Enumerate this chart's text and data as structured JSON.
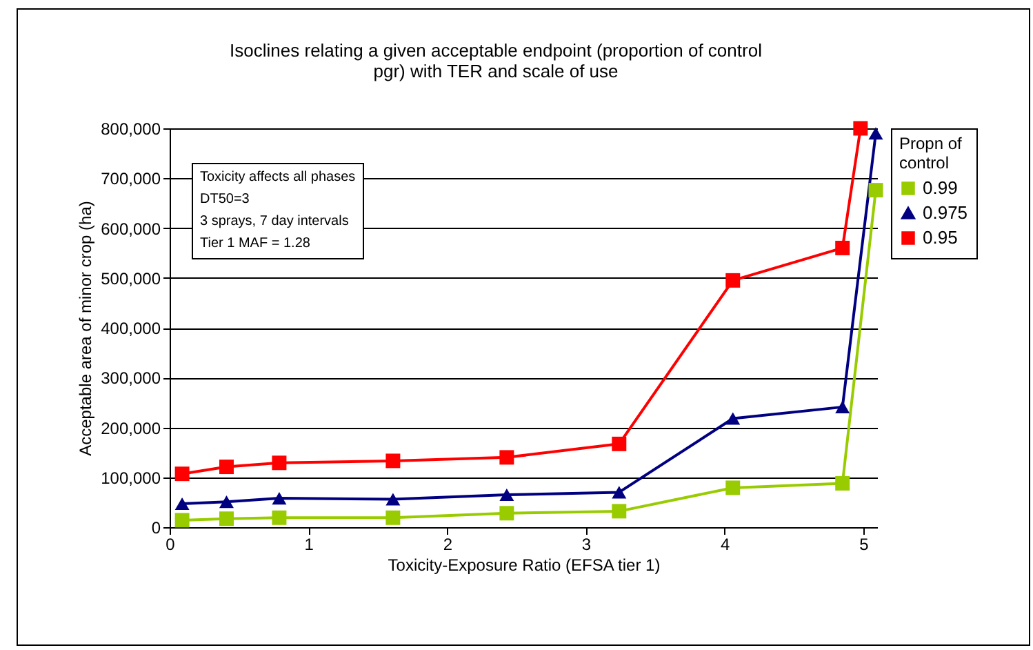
{
  "chart_data": {
    "type": "line",
    "title": "Isoclines relating a given acceptable endpoint (proportion of control pgr) with TER and scale of use",
    "xlabel": "Toxicity-Exposure Ratio (EFSA tier 1)",
    "ylabel": "Acceptable area of minor crop (ha)",
    "legend_title": "Propn of control",
    "annotations": [
      "Toxicity affects all phases",
      "DT50=3",
      "3 sprays, 7 day intervals",
      "Tier 1 MAF = 1.28"
    ],
    "series": [
      {
        "name": "0.99",
        "color": "#99cc00",
        "marker": "square",
        "x": [
          0.09,
          0.41,
          0.79,
          1.61,
          2.43,
          3.24,
          4.06,
          4.85,
          5.09
        ],
        "values": [
          14000,
          17000,
          19000,
          19000,
          28000,
          32000,
          79000,
          88000,
          676000
        ]
      },
      {
        "name": "0.975",
        "color": "#000080",
        "marker": "triangle",
        "x": [
          0.09,
          0.41,
          0.79,
          1.61,
          2.43,
          3.24,
          4.06,
          4.85,
          5.09
        ],
        "values": [
          47000,
          51000,
          58000,
          56000,
          65000,
          70000,
          218000,
          241000,
          790000
        ]
      },
      {
        "name": "0.95",
        "color": "#ff0000",
        "marker": "square",
        "x": [
          0.09,
          0.41,
          0.79,
          1.61,
          2.43,
          3.24,
          4.06,
          4.85,
          4.98
        ],
        "values": [
          107000,
          121000,
          129000,
          133000,
          140000,
          167000,
          495000,
          560000,
          800000
        ]
      }
    ],
    "xlim": [
      0,
      5.1
    ],
    "xticks": [
      0,
      1,
      2,
      3,
      4,
      5
    ],
    "ylim": [
      0,
      800000
    ],
    "yticks": [
      0,
      {
        "value": 100000,
        "label": "100,000"
      },
      {
        "value": 200000,
        "label": "200,000"
      },
      {
        "value": 300000,
        "label": "300,000"
      },
      {
        "value": 400000,
        "label": "400,000"
      },
      {
        "value": 500000,
        "label": "500,000"
      },
      {
        "value": 600000,
        "label": "600,000"
      },
      {
        "value": 700000,
        "label": "700,000"
      },
      {
        "value": 800000,
        "label": "800,000"
      }
    ],
    "grid": "y",
    "legend": "right"
  }
}
